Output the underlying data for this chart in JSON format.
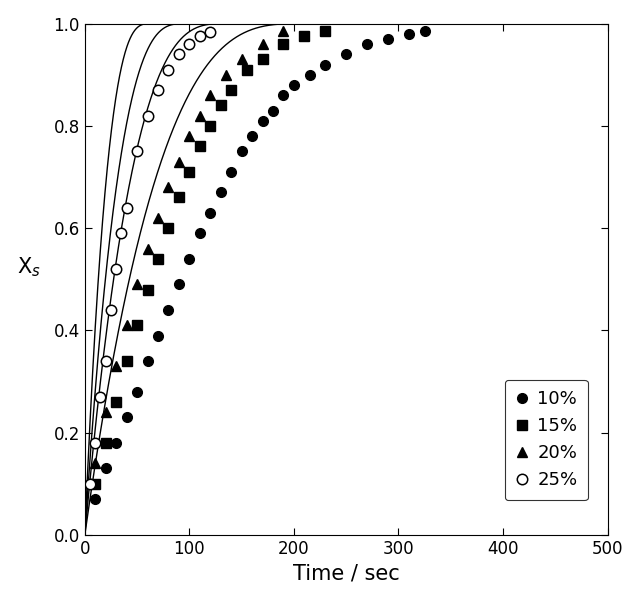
{
  "title": "",
  "xlabel": "Time / sec",
  "ylabel": "X$_{s}$",
  "xlim": [
    0,
    500
  ],
  "ylim": [
    0.0,
    1.0
  ],
  "xticks": [
    0,
    100,
    200,
    300,
    400,
    500
  ],
  "yticks": [
    0.0,
    0.2,
    0.4,
    0.6,
    0.8,
    1.0
  ],
  "series": [
    {
      "label": "10%",
      "marker": "o",
      "filled": true,
      "k": 0.00485,
      "data_x": [
        10,
        20,
        30,
        40,
        50,
        60,
        70,
        80,
        90,
        100,
        110,
        120,
        130,
        140,
        150,
        160,
        170,
        180,
        190,
        200,
        215,
        230,
        250,
        270,
        290,
        310,
        325
      ],
      "data_y": [
        0.07,
        0.13,
        0.18,
        0.23,
        0.28,
        0.34,
        0.39,
        0.44,
        0.49,
        0.54,
        0.59,
        0.63,
        0.67,
        0.71,
        0.75,
        0.78,
        0.81,
        0.83,
        0.86,
        0.88,
        0.9,
        0.92,
        0.94,
        0.96,
        0.97,
        0.98,
        0.985
      ]
    },
    {
      "label": "15%",
      "marker": "s",
      "filled": true,
      "k": 0.0075,
      "data_x": [
        10,
        20,
        30,
        40,
        50,
        60,
        70,
        80,
        90,
        100,
        110,
        120,
        130,
        140,
        155,
        170,
        190,
        210,
        230
      ],
      "data_y": [
        0.1,
        0.18,
        0.26,
        0.34,
        0.41,
        0.48,
        0.54,
        0.6,
        0.66,
        0.71,
        0.76,
        0.8,
        0.84,
        0.87,
        0.91,
        0.93,
        0.96,
        0.975,
        0.985
      ]
    },
    {
      "label": "20%",
      "marker": "^",
      "filled": true,
      "k": 0.0105,
      "data_x": [
        10,
        20,
        30,
        40,
        50,
        60,
        70,
        80,
        90,
        100,
        110,
        120,
        135,
        150,
        170,
        190
      ],
      "data_y": [
        0.14,
        0.24,
        0.33,
        0.41,
        0.49,
        0.56,
        0.62,
        0.68,
        0.73,
        0.78,
        0.82,
        0.86,
        0.9,
        0.93,
        0.96,
        0.985
      ]
    },
    {
      "label": "25%",
      "marker": "o",
      "filled": false,
      "k": 0.016,
      "data_x": [
        5,
        10,
        15,
        20,
        25,
        30,
        35,
        40,
        50,
        60,
        70,
        80,
        90,
        100,
        110,
        120
      ],
      "data_y": [
        0.1,
        0.18,
        0.27,
        0.34,
        0.44,
        0.52,
        0.59,
        0.64,
        0.75,
        0.82,
        0.87,
        0.91,
        0.94,
        0.96,
        0.975,
        0.983
      ]
    }
  ],
  "markersize": 7,
  "linewidth": 1.0,
  "figsize": [
    6.4,
    6.0
  ],
  "dpi": 100
}
